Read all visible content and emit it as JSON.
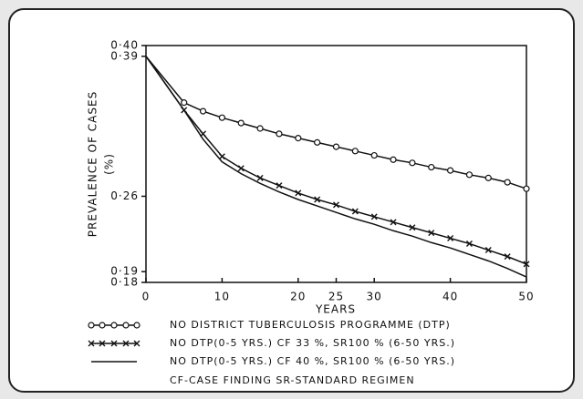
{
  "chart_data": {
    "type": "line",
    "xlabel": "YEARS",
    "ylabel": "PREVALENCE OF CASES",
    "ylabel_unit": "(%)",
    "x": [
      0,
      5,
      7.5,
      10,
      12.5,
      15,
      17.5,
      20,
      22.5,
      25,
      27.5,
      30,
      32.5,
      35,
      37.5,
      40,
      42.5,
      45,
      47.5,
      50
    ],
    "series": [
      {
        "name": "NO DISTRICT TUBERCULOSIS PROGRAMME (DTP)",
        "color": "#111111",
        "marker": "circle",
        "values": [
          0.39,
          0.347,
          0.339,
          0.333,
          0.328,
          0.323,
          0.318,
          0.314,
          0.31,
          0.306,
          0.302,
          0.298,
          0.294,
          0.291,
          0.287,
          0.284,
          0.28,
          0.277,
          0.273,
          0.267
        ]
      },
      {
        "name": "NO DTP(0-5 YRS.) CF 33 %, SR100 % (6-50 YRS.)",
        "color": "#111111",
        "marker": "cross",
        "values": [
          0.39,
          0.34,
          0.318,
          0.297,
          0.286,
          0.277,
          0.27,
          0.263,
          0.257,
          0.252,
          0.246,
          0.241,
          0.236,
          0.231,
          0.226,
          0.221,
          0.216,
          0.21,
          0.204,
          0.197
        ]
      },
      {
        "name": "NO DTP(0-5 YRS.) CF 40 %, SR100 % (6-50 YRS.)",
        "color": "#111111",
        "marker": "none",
        "values": [
          0.39,
          0.34,
          0.313,
          0.292,
          0.281,
          0.272,
          0.264,
          0.257,
          0.251,
          0.245,
          0.239,
          0.234,
          0.228,
          0.223,
          0.217,
          0.212,
          0.206,
          0.2,
          0.193,
          0.185
        ]
      }
    ],
    "note": "CF-CASE FINDING     SR-STANDARD REGIMEN",
    "xlim": [
      0,
      50
    ],
    "xticks": [
      0,
      10,
      20,
      25,
      30,
      40,
      50
    ],
    "ylim": [
      0.18,
      0.4
    ],
    "yticks": [
      {
        "value": 0.4,
        "label": "0·40"
      },
      {
        "value": 0.39,
        "label": "0·39"
      },
      {
        "value": 0.26,
        "label": "0·26"
      },
      {
        "value": 0.19,
        "label": "0·19"
      },
      {
        "value": 0.18,
        "label": "0·18"
      }
    ]
  }
}
